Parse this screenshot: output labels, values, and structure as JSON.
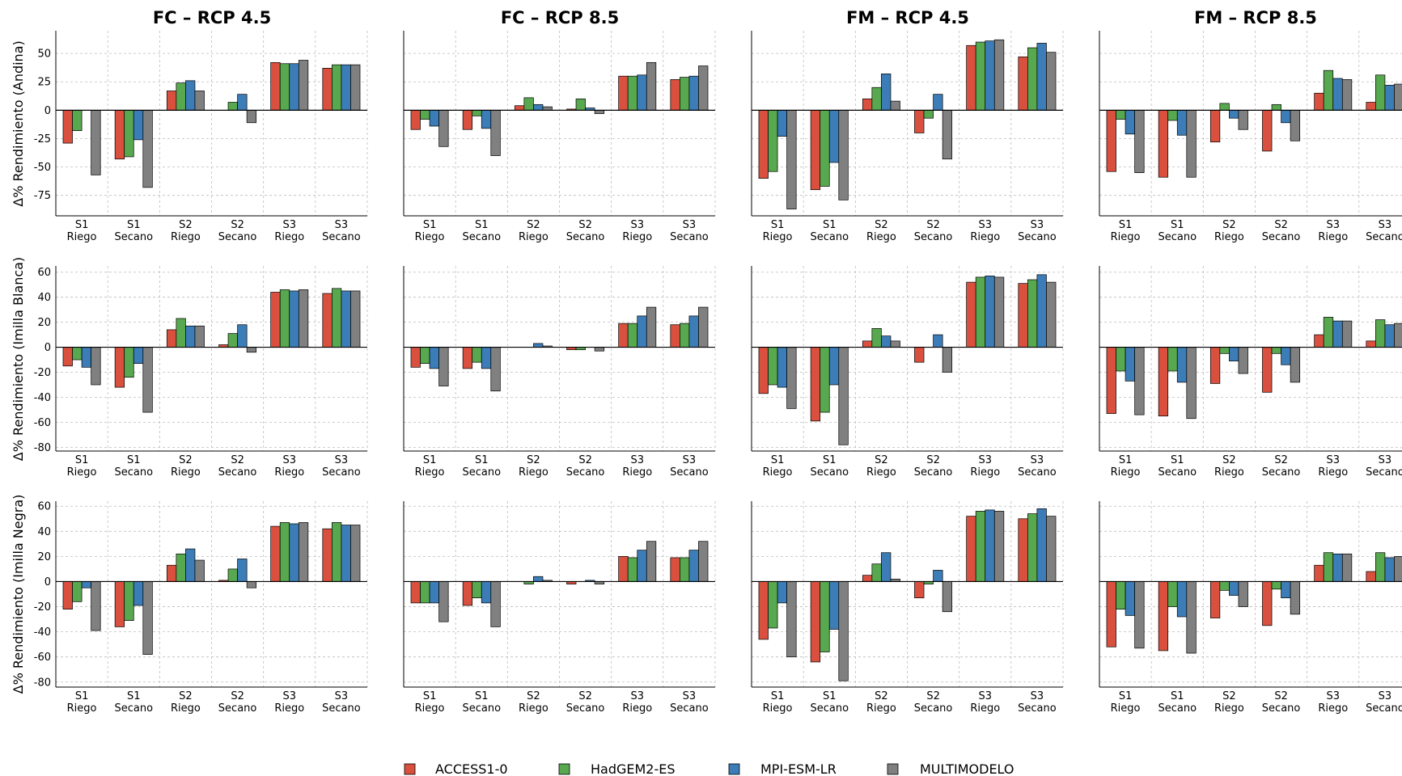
{
  "chart_data": {
    "type": "bar",
    "column_titles": [
      "FC – RCP 4.5",
      "FC – RCP 8.5",
      "FM – RCP 4.5",
      "FM – RCP 8.5"
    ],
    "row_labels": [
      "Δ% Rendimiento (Andina)",
      "Δ% Rendimiento (Imilla Blanca)",
      "Δ% Rendimiento (Imilla Negra)"
    ],
    "categories": [
      {
        "line1": "S1",
        "line2": "Riego"
      },
      {
        "line1": "S1",
        "line2": "Secano"
      },
      {
        "line1": "S2",
        "line2": "Riego"
      },
      {
        "line1": "S2",
        "line2": "Secano"
      },
      {
        "line1": "S3",
        "line2": "Riego"
      },
      {
        "line1": "S3",
        "line2": "Secano"
      }
    ],
    "series_names": [
      "ACCESS1-0",
      "HadGEM2-ES",
      "MPI-ESM-LR",
      "MULTIMODELO"
    ],
    "colors": [
      "#d9503f",
      "#58a84f",
      "#3c7db8",
      "#808080"
    ],
    "rows": [
      {
        "ylim": [
          -93,
          70
        ],
        "yticks": [
          50,
          25,
          0,
          -25,
          -50,
          -75
        ],
        "panels": [
          [
            [
              -29,
              -18,
              0,
              -57
            ],
            [
              -43,
              -41,
              -26,
              -68
            ],
            [
              17,
              24,
              26,
              17
            ],
            [
              0,
              7,
              14,
              -11
            ],
            [
              42,
              41,
              41,
              44
            ],
            [
              37,
              40,
              40,
              40
            ]
          ],
          [
            [
              -17,
              -8,
              -14,
              -32
            ],
            [
              -17,
              -5,
              -16,
              -40
            ],
            [
              4,
              11,
              5,
              3
            ],
            [
              1,
              10,
              2,
              -3
            ],
            [
              30,
              30,
              31,
              42
            ],
            [
              27,
              29,
              30,
              39
            ]
          ],
          [
            [
              -60,
              -54,
              -23,
              -87
            ],
            [
              -70,
              -67,
              -46,
              -79
            ],
            [
              10,
              20,
              32,
              8
            ],
            [
              -20,
              -7,
              14,
              -43
            ],
            [
              57,
              60,
              61,
              62
            ],
            [
              47,
              55,
              59,
              51
            ]
          ],
          [
            [
              -54,
              -8,
              -21,
              -55
            ],
            [
              -59,
              -9,
              -22,
              -59
            ],
            [
              -28,
              6,
              -7,
              -17
            ],
            [
              -36,
              5,
              -11,
              -27
            ],
            [
              15,
              35,
              28,
              27
            ],
            [
              7,
              31,
              22,
              23
            ]
          ]
        ]
      },
      {
        "ylim": [
          -83,
          65
        ],
        "yticks": [
          60,
          40,
          20,
          0,
          -20,
          -40,
          -60,
          -80
        ],
        "panels": [
          [
            [
              -15,
              -10,
              -16,
              -30
            ],
            [
              -32,
              -24,
              -13,
              -52
            ],
            [
              14,
              23,
              17,
              17
            ],
            [
              2,
              11,
              18,
              -4
            ],
            [
              44,
              46,
              45,
              46
            ],
            [
              43,
              47,
              45,
              45
            ]
          ],
          [
            [
              -16,
              -13,
              -17,
              -31
            ],
            [
              -17,
              -12,
              -17,
              -35
            ],
            [
              0,
              0,
              3,
              1
            ],
            [
              -2,
              -2,
              0,
              -3
            ],
            [
              19,
              19,
              25,
              32
            ],
            [
              18,
              19,
              25,
              32
            ]
          ],
          [
            [
              -37,
              -30,
              -32,
              -49
            ],
            [
              -59,
              -52,
              -30,
              -78
            ],
            [
              5,
              15,
              9,
              5
            ],
            [
              -12,
              0,
              10,
              -20
            ],
            [
              52,
              56,
              57,
              56
            ],
            [
              51,
              54,
              58,
              52
            ]
          ],
          [
            [
              -53,
              -19,
              -27,
              -54
            ],
            [
              -55,
              -19,
              -28,
              -57
            ],
            [
              -29,
              -5,
              -11,
              -21
            ],
            [
              -36,
              -5,
              -14,
              -28
            ],
            [
              10,
              24,
              21,
              21
            ],
            [
              5,
              22,
              18,
              19
            ]
          ]
        ]
      },
      {
        "ylim": [
          -84,
          64
        ],
        "yticks": [
          60,
          40,
          20,
          0,
          -20,
          -40,
          -60,
          -80
        ],
        "panels": [
          [
            [
              -22,
              -16,
              -5,
              -39
            ],
            [
              -36,
              -31,
              -19,
              -58
            ],
            [
              13,
              22,
              26,
              17
            ],
            [
              1,
              10,
              18,
              -5
            ],
            [
              44,
              47,
              46,
              47
            ],
            [
              42,
              47,
              45,
              45
            ]
          ],
          [
            [
              -17,
              -17,
              -17,
              -32
            ],
            [
              -19,
              -13,
              -17,
              -36
            ],
            [
              0,
              -2,
              4,
              1
            ],
            [
              -2,
              0,
              1,
              -2
            ],
            [
              20,
              19,
              25,
              32
            ],
            [
              19,
              19,
              25,
              32
            ]
          ],
          [
            [
              -46,
              -37,
              -17,
              -60
            ],
            [
              -64,
              -56,
              -38,
              -79
            ],
            [
              5,
              14,
              23,
              2
            ],
            [
              -13,
              -2,
              9,
              -24
            ],
            [
              52,
              56,
              57,
              56
            ],
            [
              50,
              54,
              58,
              52
            ]
          ],
          [
            [
              -52,
              -22,
              -27,
              -53
            ],
            [
              -55,
              -20,
              -28,
              -57
            ],
            [
              -29,
              -7,
              -11,
              -20
            ],
            [
              -35,
              -6,
              -13,
              -26
            ],
            [
              13,
              23,
              22,
              22
            ],
            [
              8,
              23,
              19,
              20
            ]
          ]
        ]
      }
    ]
  }
}
